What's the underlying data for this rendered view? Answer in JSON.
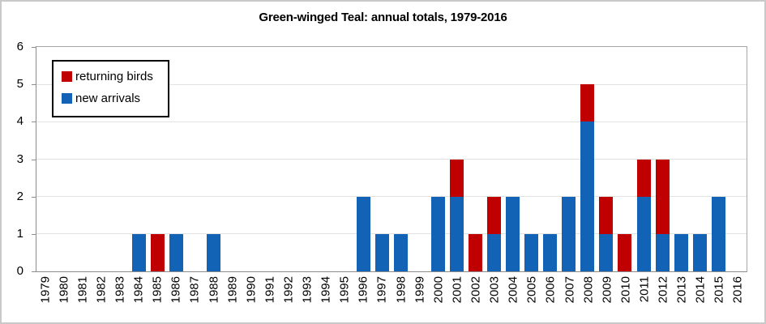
{
  "chart_data": {
    "type": "bar",
    "stacked": true,
    "title": "Green-winged Teal: annual totals, 1979-2016",
    "categories": [
      "1979",
      "1980",
      "1981",
      "1982",
      "1983",
      "1984",
      "1985",
      "1986",
      "1987",
      "1988",
      "1989",
      "1990",
      "1991",
      "1992",
      "1993",
      "1994",
      "1995",
      "1996",
      "1997",
      "1998",
      "1999",
      "2000",
      "2001",
      "2002",
      "2003",
      "2004",
      "2005",
      "2006",
      "2007",
      "2008",
      "2009",
      "2010",
      "2011",
      "2012",
      "2013",
      "2014",
      "2015",
      "2016"
    ],
    "series": [
      {
        "name": "returning birds",
        "color": "#C00000",
        "stack_position": "top",
        "values": [
          0,
          0,
          0,
          0,
          0,
          0,
          1,
          0,
          0,
          0,
          0,
          0,
          0,
          0,
          0,
          0,
          0,
          0,
          0,
          0,
          0,
          0,
          1,
          1,
          1,
          0,
          0,
          0,
          0,
          1,
          1,
          1,
          1,
          2,
          0,
          0,
          0,
          0
        ]
      },
      {
        "name": "new arrivals",
        "color": "#1263B6",
        "stack_position": "bottom",
        "values": [
          0,
          0,
          0,
          0,
          0,
          1,
          0,
          1,
          0,
          1,
          0,
          0,
          0,
          0,
          0,
          0,
          0,
          2,
          1,
          1,
          0,
          2,
          2,
          0,
          1,
          2,
          1,
          1,
          2,
          4,
          1,
          0,
          2,
          1,
          1,
          1,
          2,
          0
        ]
      }
    ],
    "xlabel": "",
    "ylabel": "",
    "ylim": [
      0,
      6
    ],
    "yticks": [
      0,
      1,
      2,
      3,
      4,
      5,
      6
    ],
    "grid": true,
    "x_tick_rotation": 90,
    "legend": {
      "position": "top-left",
      "entries": [
        "returning birds",
        "new arrivals"
      ]
    }
  },
  "colors": {
    "background": "#FFFFFF",
    "outer_border": "#C9C9C9",
    "plot_border": "#A6A6A6",
    "axis_line": "#8C8C8C",
    "gridline": "#E2E2E2",
    "text": "#000000"
  }
}
